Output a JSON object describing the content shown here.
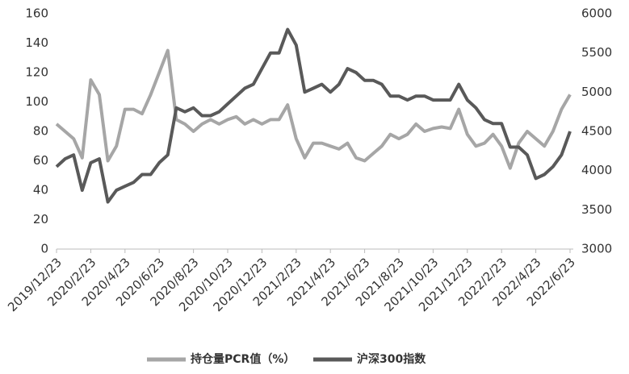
{
  "chart_data": {
    "type": "line",
    "categories": [
      "2019/12/23",
      null,
      null,
      null,
      "2020/2/23",
      null,
      null,
      null,
      "2020/4/23",
      null,
      null,
      null,
      "2020/6/23",
      null,
      null,
      null,
      "2020/8/23",
      null,
      null,
      null,
      "2020/10/23",
      null,
      null,
      null,
      "2020/12/23",
      null,
      null,
      null,
      "2021/2/23",
      null,
      null,
      null,
      "2021/4/23",
      null,
      null,
      null,
      "2021/6/23",
      null,
      null,
      null,
      "2021/8/23",
      null,
      null,
      null,
      "2021/10/23",
      null,
      null,
      null,
      "2021/12/23",
      null,
      null,
      null,
      "2022/2/23",
      null,
      null,
      null,
      "2022/4/23",
      null,
      null,
      null,
      "2022/6/23"
    ],
    "series": [
      {
        "name": "持仓量PCR值（%）",
        "color": "#a6a6a6",
        "axis": "y",
        "values": [
          85,
          80,
          75,
          62,
          115,
          105,
          60,
          70,
          95,
          95,
          92,
          105,
          120,
          135,
          88,
          85,
          80,
          85,
          88,
          85,
          88,
          90,
          85,
          88,
          85,
          88,
          88,
          98,
          75,
          62,
          72,
          72,
          70,
          68,
          72,
          62,
          60,
          65,
          70,
          78,
          75,
          78,
          85,
          80,
          82,
          83,
          82,
          95,
          78,
          70,
          72,
          78,
          70,
          55,
          72,
          80,
          75,
          70,
          80,
          95,
          105
        ]
      },
      {
        "name": "沪深300指数",
        "color": "#595959",
        "axis": "y2",
        "values": [
          4050,
          4150,
          4200,
          3750,
          4100,
          4150,
          3600,
          3750,
          3800,
          3850,
          3950,
          3950,
          4100,
          4200,
          4800,
          4750,
          4800,
          4700,
          4700,
          4750,
          4850,
          4950,
          5050,
          5100,
          5300,
          5500,
          5500,
          5800,
          5600,
          5000,
          5050,
          5100,
          5000,
          5100,
          5300,
          5250,
          5150,
          5150,
          5100,
          4950,
          4950,
          4900,
          4950,
          4950,
          4900,
          4900,
          4900,
          5100,
          4900,
          4800,
          4650,
          4600,
          4600,
          4300,
          4300,
          4200,
          3900,
          3950,
          4050,
          4200,
          4500
        ]
      }
    ],
    "ylim": [
      0,
      160
    ],
    "yticks": [
      0,
      20,
      40,
      60,
      80,
      100,
      120,
      140,
      160
    ],
    "y2lim": [
      3000,
      6000
    ],
    "y2ticks": [
      3000,
      3500,
      4000,
      4500,
      5000,
      5500,
      6000
    ],
    "legend": "bottom"
  }
}
